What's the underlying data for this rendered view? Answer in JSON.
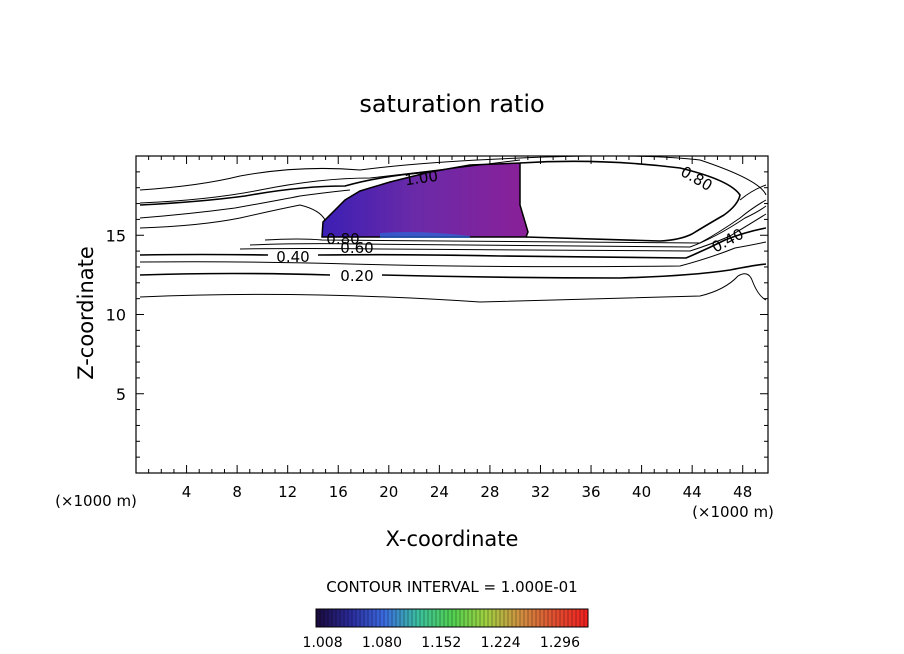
{
  "chart_data": {
    "type": "contour",
    "title": "saturation ratio",
    "xlabel": "X-coordinate",
    "ylabel": "Z-coordinate",
    "x_unit": "(×1000 m)",
    "x_unit_right": "(×1000 m)",
    "xlim": [
      0,
      50
    ],
    "ylim": [
      0,
      20
    ],
    "x_ticks": [
      4,
      8,
      12,
      16,
      20,
      24,
      28,
      32,
      36,
      40,
      44,
      48
    ],
    "y_ticks": [
      5,
      10,
      15
    ],
    "contour_interval_text": "CONTOUR INTERVAL = 1.000E-01",
    "contour_labels": [
      {
        "text": "1.00",
        "x": 22.0,
        "z": 18.6
      },
      {
        "text": "0.80",
        "x": 44.5,
        "z": 18.6
      },
      {
        "text": "0.80",
        "x": 16.4,
        "z": 14.8
      },
      {
        "text": "0.60",
        "x": 17.4,
        "z": 14.3
      },
      {
        "text": "0.40",
        "x": 12.4,
        "z": 13.6
      },
      {
        "text": "0.40",
        "x": 47.0,
        "z": 14.6
      },
      {
        "text": "0.20",
        "x": 17.0,
        "z": 12.4
      }
    ],
    "colorbar": {
      "labels": [
        "1.008",
        "1.080",
        "1.152",
        "1.224",
        "1.296"
      ],
      "min": 1.0,
      "max": 1.33,
      "colors": [
        "#1a0a3a",
        "#2a2a9a",
        "#3a6ae0",
        "#3ac0a0",
        "#50d050",
        "#a0d040",
        "#d09040",
        "#e05030",
        "#f02020"
      ]
    },
    "fill_colors": {
      "low": "#3b1fb4",
      "mid": "#6a2aa8",
      "high": "#8a2098"
    }
  }
}
